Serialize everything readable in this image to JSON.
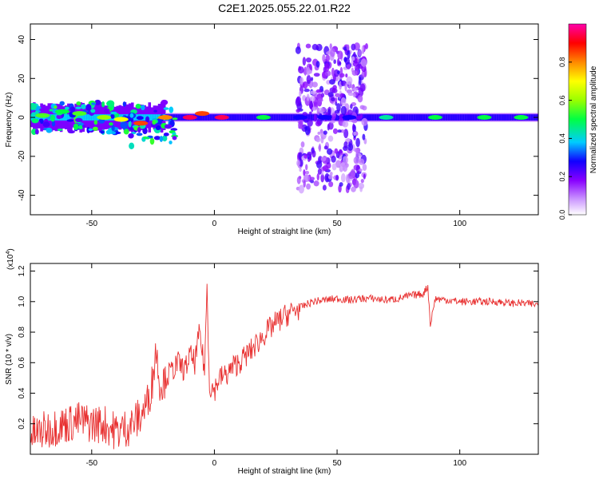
{
  "title": "C2E1.2025.055.22.01.R22",
  "colors": {
    "snr_line": "#e83030"
  },
  "chart_data": [
    {
      "type": "heatmap",
      "xlabel": "Height of straight line (km)",
      "ylabel": "Frequency (Hz)",
      "xlim": [
        -75,
        132
      ],
      "ylim": [
        -50,
        48
      ],
      "xticks": [
        -50,
        0,
        50,
        100
      ],
      "yticks": [
        -40,
        -20,
        0,
        20,
        40
      ],
      "colorbar": {
        "label": "Normalized spectral amplitude",
        "range": [
          0,
          1
        ],
        "ticks": [
          "0.0",
          "0.2",
          "0.4",
          "0.6",
          "0.8"
        ],
        "colormap": [
          "#ffffff",
          "#cc99ff",
          "#8800ff",
          "#1100ff",
          "#00ccff",
          "#00ff44",
          "#99ff00",
          "#ffff00",
          "#ff8800",
          "#ff0000",
          "#ff00aa"
        ]
      },
      "description_points": [
        {
          "x": -70,
          "y": 1,
          "v": 0.55
        },
        {
          "x": -62,
          "y": 3,
          "v": 0.5
        },
        {
          "x": -55,
          "y": 2,
          "v": 0.55
        },
        {
          "x": -45,
          "y": 0,
          "v": 0.6
        },
        {
          "x": -38,
          "y": -1,
          "v": 0.7
        },
        {
          "x": -30,
          "y": -3,
          "v": 0.85
        },
        {
          "x": -20,
          "y": 0,
          "v": 0.8
        },
        {
          "x": -10,
          "y": 0,
          "v": 0.95
        },
        {
          "x": -5,
          "y": 2,
          "v": 0.85
        },
        {
          "x": 3,
          "y": 0,
          "v": 0.95
        },
        {
          "x": 20,
          "y": 0,
          "v": 0.5
        },
        {
          "x": 35,
          "y": 0,
          "v": 0.3
        },
        {
          "x": 45,
          "y": 0,
          "v": 0.3
        },
        {
          "x": 55,
          "y": 0,
          "v": 0.3
        },
        {
          "x": 70,
          "y": 0,
          "v": 0.45
        },
        {
          "x": 90,
          "y": 0,
          "v": 0.5
        },
        {
          "x": 110,
          "y": 0,
          "v": 0.5
        },
        {
          "x": 125,
          "y": 0,
          "v": 0.5
        }
      ]
    },
    {
      "type": "line",
      "xlabel": "Height of straight line (km)",
      "ylabel": "SNR (10 * v/v)",
      "yscale_label": "(x10",
      "yscale_exp": "4",
      "yscale_close": ")",
      "xlim": [
        -75,
        132
      ],
      "ylim": [
        0,
        1.25
      ],
      "xticks": [
        -50,
        0,
        50,
        100
      ],
      "yticks": [
        "0.2",
        "0.4",
        "0.6",
        "0.8",
        "1.0",
        "1.2"
      ],
      "series": [
        {
          "color": "#e83030",
          "x": [
            -75,
            -70,
            -65,
            -60,
            -55,
            -50,
            -45,
            -40,
            -35,
            -30,
            -27,
            -25,
            -24,
            -22,
            -20,
            -17,
            -15,
            -12,
            -10,
            -8,
            -6,
            -4,
            -3,
            -2,
            0,
            2,
            5,
            8,
            10,
            15,
            20,
            25,
            30,
            35,
            40,
            45,
            50,
            55,
            60,
            65,
            70,
            75,
            80,
            85,
            87,
            88,
            90,
            95,
            100,
            105,
            110,
            115,
            120,
            125,
            132
          ],
          "y": [
            0.12,
            0.15,
            0.18,
            0.2,
            0.22,
            0.2,
            0.2,
            0.15,
            0.18,
            0.25,
            0.35,
            0.5,
            0.7,
            0.45,
            0.5,
            0.55,
            0.6,
            0.55,
            0.65,
            0.6,
            0.8,
            0.55,
            1.1,
            0.45,
            0.42,
            0.5,
            0.52,
            0.58,
            0.6,
            0.68,
            0.78,
            0.86,
            0.92,
            0.96,
            1.0,
            1.01,
            1.02,
            1.01,
            1.02,
            1.02,
            1.01,
            1.02,
            1.04,
            1.05,
            1.1,
            0.85,
            1.02,
            1.01,
            1.0,
            1.0,
            1.0,
            1.0,
            0.99,
            0.99,
            0.98
          ]
        }
      ]
    }
  ]
}
